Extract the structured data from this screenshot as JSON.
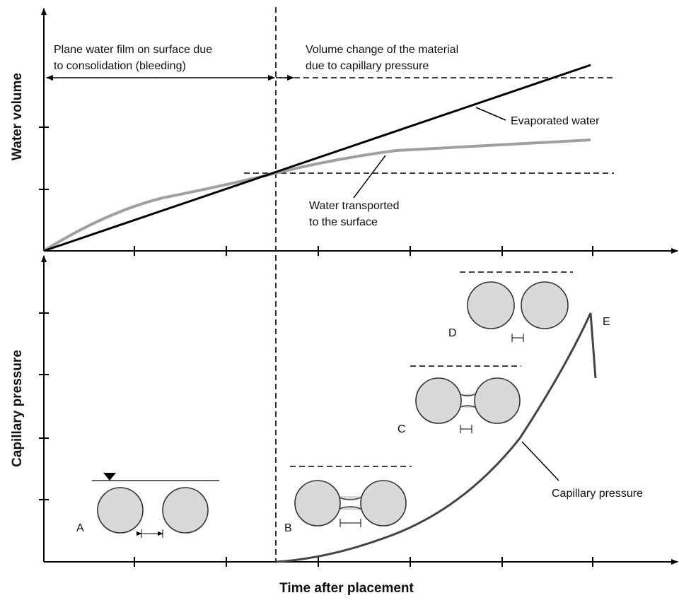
{
  "axes": {
    "top_y_label": "Water volume",
    "bottom_y_label": "Capillary pressure",
    "x_label": "Time after placement"
  },
  "annotations": {
    "bleeding": [
      "Plane water film on surface due",
      "to consolidation (bleeding)"
    ],
    "volume_change": [
      "Volume change of the material",
      "due to capillary pressure"
    ],
    "evaporated": "Evaporated water",
    "transported": [
      "Water transported",
      "to the surface"
    ],
    "capillary_curve": "Capillary pressure"
  },
  "stages": [
    "A",
    "B",
    "C",
    "D",
    "E"
  ]
}
